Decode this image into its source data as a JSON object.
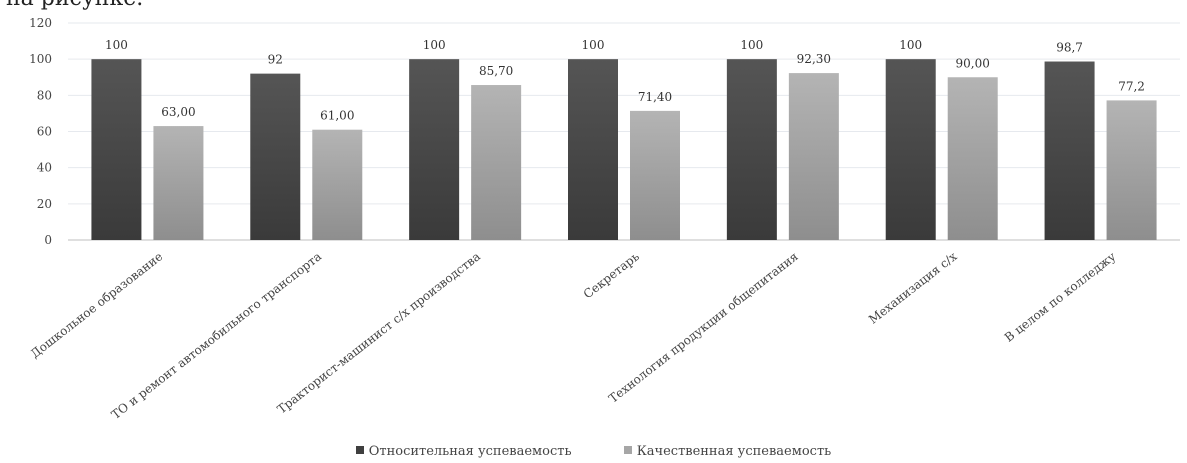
{
  "caption_fragment": "на рисунке.",
  "chart_data": {
    "type": "bar",
    "categories": [
      "Дошкольное образование",
      "ТО и ремонт автомобильного транспорта",
      "Тракторист-машинист с/х производства",
      "Секретарь",
      "Технология продукции общепитания",
      "Механизация с/х",
      "В целом по колледжу"
    ],
    "series": [
      {
        "name": "Относительная успеваемость",
        "values": [
          100,
          92,
          100,
          100,
          100,
          100,
          98.7
        ],
        "labels": [
          "100",
          "92",
          "100",
          "100",
          "100",
          "100",
          "98,7"
        ],
        "color": "#4a4a4a"
      },
      {
        "name": "Качественная успеваемость",
        "values": [
          63.0,
          61.0,
          85.7,
          71.4,
          92.3,
          90.0,
          77.2
        ],
        "labels": [
          "63,00",
          "61,00",
          "85,70",
          "71,40",
          "92,30",
          "90,00",
          "77,2"
        ],
        "color": "#a6a6a6"
      }
    ],
    "ylim": [
      0,
      120
    ],
    "yticks": [
      0,
      20,
      40,
      60,
      80,
      100,
      120
    ],
    "grid": true,
    "legend_position": "bottom"
  }
}
